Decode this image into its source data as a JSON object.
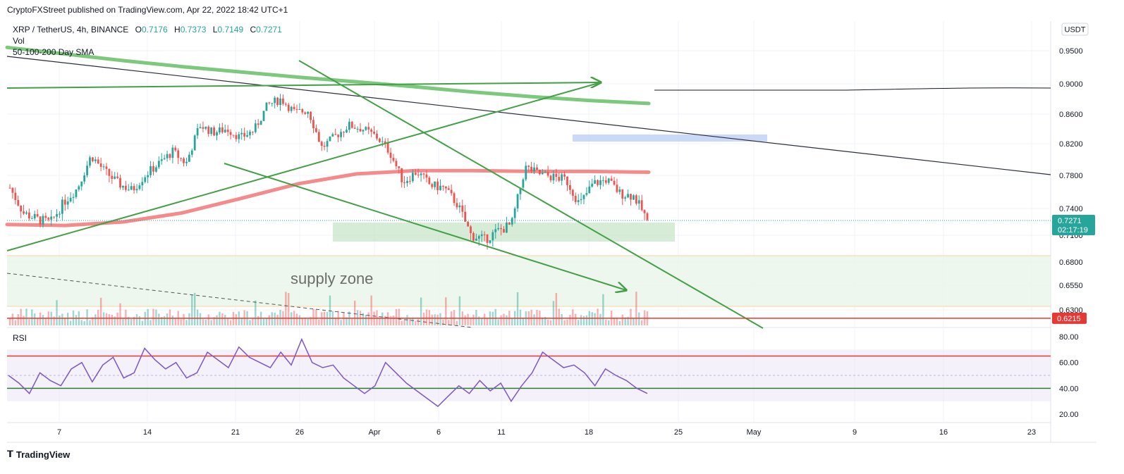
{
  "header": {
    "published": "CryptoFXStreet published on TradingView.com, Apr 22, 2022 18:42 UTC+1"
  },
  "legend": {
    "symbol": "XRP / TetherUS, 4h, BINANCE",
    "open_label": "O",
    "open": "0.7176",
    "high_label": "H",
    "high": "0.7373",
    "low_label": "L",
    "low": "0.7149",
    "close_label": "C",
    "close": "0.7271",
    "vol_label": "Vol",
    "sma_label": "50-100-200 Day SMA"
  },
  "currency": "USDT",
  "price_tags": {
    "last": "0.7271",
    "countdown": "02:17:19",
    "red_line": "0.6215"
  },
  "annotation": "supply zone",
  "rsi_label": "RSI",
  "footer": {
    "brand": "TradingView"
  },
  "colors": {
    "up": "#26a69a",
    "down": "#ef5350",
    "sma_green": "#7cc87c",
    "sma_red": "#f48a8a",
    "trend_green": "#43a047",
    "rsi_line": "#7e57c2",
    "rsi_band": "#ede7f6",
    "red_line": "#e53935",
    "green_line": "#2e7d32",
    "supply_zone": "#e8f5e9",
    "demand_box": "#c8e6c9",
    "blue_box": "#c5d5f7",
    "tag_green": "#26a69a"
  },
  "chart_data": [
    {
      "type": "candlestick",
      "symbol": "XRP/USDT",
      "timeframe": "4h",
      "x_ticks": [
        "7",
        "14",
        "21",
        "26",
        "Apr",
        "6",
        "11",
        "18",
        "25",
        "May",
        "9",
        "16",
        "23"
      ],
      "y_ticks": [
        "0.9500",
        "0.9000",
        "0.8600",
        "0.8200",
        "0.7800",
        "0.7400",
        "0.7100",
        "0.6800",
        "0.6550",
        "0.6300"
      ],
      "ylim": [
        0.615,
        0.965
      ],
      "series": [
        {
          "name": "50-100-200 Day SMA",
          "values": [
            0.955,
            0.945,
            0.935,
            0.926,
            0.918,
            0.91,
            0.903,
            0.896,
            0.889,
            0.883,
            0.878,
            0.874
          ]
        },
        {
          "name": "50-100-200 Day SMA",
          "values": [
            0.722,
            0.721,
            0.725,
            0.735,
            0.752,
            0.77,
            0.782,
            0.786,
            0.786,
            0.785,
            0.785,
            0.784
          ]
        }
      ],
      "close_path": [
        0.765,
        0.735,
        0.728,
        0.724,
        0.748,
        0.765,
        0.805,
        0.785,
        0.77,
        0.762,
        0.781,
        0.795,
        0.81,
        0.795,
        0.845,
        0.835,
        0.84,
        0.828,
        0.838,
        0.872,
        0.88,
        0.862,
        0.865,
        0.815,
        0.83,
        0.845,
        0.84,
        0.83,
        0.81,
        0.772,
        0.785,
        0.768,
        0.765,
        0.745,
        0.71,
        0.705,
        0.715,
        0.722,
        0.79,
        0.782,
        0.778,
        0.775,
        0.745,
        0.77,
        0.775,
        0.758,
        0.755,
        0.727
      ],
      "last_price": 0.7271,
      "levels": [
        {
          "label": "0.6215",
          "value": 0.6215
        }
      ]
    },
    {
      "type": "line",
      "title": "RSI",
      "y_ticks": [
        "80.00",
        "60.00",
        "40.00",
        "20.00"
      ],
      "ylim": [
        15,
        85
      ],
      "levels": [
        65,
        40
      ],
      "values": [
        50,
        44,
        36,
        52,
        46,
        42,
        55,
        60,
        45,
        58,
        64,
        48,
        52,
        71,
        62,
        55,
        60,
        48,
        52,
        68,
        62,
        56,
        72,
        64,
        60,
        56,
        68,
        58,
        78,
        60,
        56,
        58,
        48,
        42,
        36,
        42,
        60,
        52,
        44,
        38,
        32,
        26,
        34,
        42,
        36,
        46,
        38,
        44,
        30,
        42,
        52,
        68,
        62,
        56,
        58,
        52,
        42,
        55,
        50,
        46,
        40,
        36
      ]
    }
  ]
}
